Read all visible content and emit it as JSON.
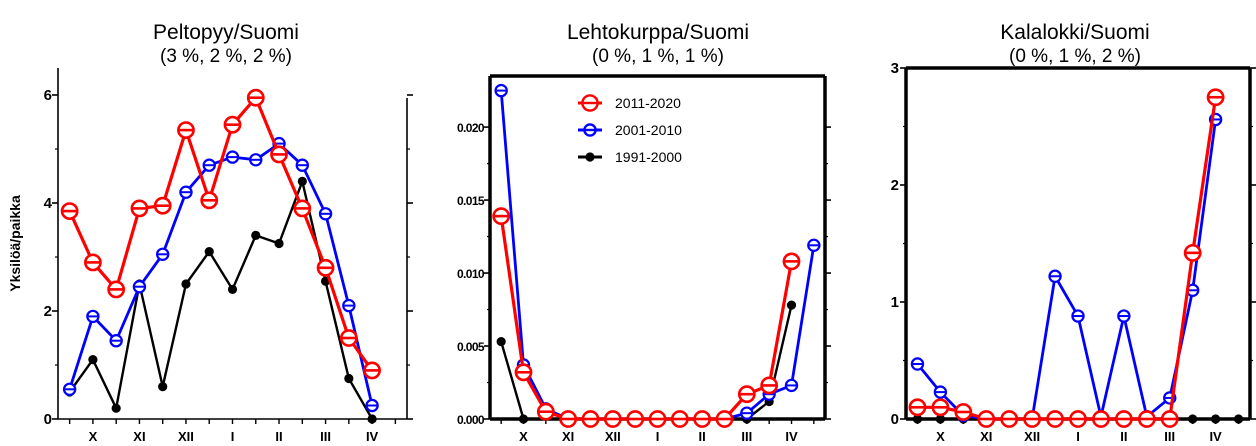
{
  "chart_data": [
    {
      "type": "line",
      "title": "Peltopyy/Suomi",
      "subtitle": "(3 %, 2 %, 2 %)",
      "ylabel": "Yksilöä/paikka",
      "ylim": [
        0,
        6.5
      ],
      "yticks": [
        0,
        2,
        4,
        6
      ],
      "ytick_labels": [
        "0",
        "2",
        "4",
        "6"
      ],
      "xlim": [
        0.5,
        15.5
      ],
      "xticks": [
        {
          "pos": 2,
          "label": "X"
        },
        {
          "pos": 4,
          "label": "XI"
        },
        {
          "pos": 6,
          "label": "XII"
        },
        {
          "pos": 8,
          "label": "I"
        },
        {
          "pos": 10,
          "label": "II"
        },
        {
          "pos": 12,
          "label": "III"
        },
        {
          "pos": 14,
          "label": "IV"
        }
      ],
      "x": [
        1,
        2,
        3,
        4,
        5,
        6,
        7,
        8,
        9,
        10,
        11,
        12,
        13,
        14,
        15
      ],
      "series": [
        {
          "name": "1991-2000",
          "color": "#000000",
          "marker": "dot",
          "values": [
            0.5,
            1.1,
            0.2,
            2.5,
            0.6,
            2.5,
            3.1,
            2.4,
            3.4,
            3.25,
            4.4,
            2.55,
            0.75,
            0.0,
            null
          ]
        },
        {
          "name": "2001-2010",
          "color": "#0000ff",
          "marker": "circle",
          "values": [
            0.55,
            1.9,
            1.45,
            2.45,
            3.05,
            4.2,
            4.7,
            4.85,
            4.8,
            5.1,
            4.7,
            3.8,
            2.1,
            0.25,
            null
          ]
        },
        {
          "name": "2011-2020",
          "color": "#ff0000",
          "marker": "circle",
          "values": [
            3.85,
            2.9,
            2.4,
            3.9,
            3.95,
            5.35,
            4.05,
            5.45,
            5.95,
            4.9,
            3.9,
            2.8,
            1.5,
            0.9,
            null
          ]
        }
      ]
    },
    {
      "type": "line",
      "title": "Lehtokurppa/Suomi",
      "subtitle": "(0 %, 1 %, 1 %)",
      "ylim": [
        0,
        0.0235
      ],
      "yticks": [
        0,
        0.005,
        0.01,
        0.015,
        0.02
      ],
      "ytick_labels": [
        "0.000",
        "0.005",
        "0.010",
        "0.015",
        "0.020"
      ],
      "xlim": [
        0.5,
        15.5
      ],
      "xticks": [
        {
          "pos": 2,
          "label": "X"
        },
        {
          "pos": 4,
          "label": "XI"
        },
        {
          "pos": 6,
          "label": "XII"
        },
        {
          "pos": 8,
          "label": "I"
        },
        {
          "pos": 10,
          "label": "II"
        },
        {
          "pos": 12,
          "label": "III"
        },
        {
          "pos": 14,
          "label": "IV"
        }
      ],
      "x": [
        1,
        2,
        3,
        4,
        5,
        6,
        7,
        8,
        9,
        10,
        11,
        12,
        13,
        14,
        15
      ],
      "legend": {
        "placement": "top-center",
        "entries": [
          "2011-2020",
          "2001-2010",
          "1991-2000"
        ]
      },
      "series": [
        {
          "name": "1991-2000",
          "color": "#000000",
          "marker": "dot",
          "values": [
            0.0053,
            0.0,
            null,
            null,
            null,
            null,
            null,
            null,
            null,
            null,
            null,
            0.0,
            0.0012,
            0.0078,
            null
          ]
        },
        {
          "name": "2001-2010",
          "color": "#0000ff",
          "marker": "circle",
          "values": [
            0.0225,
            0.0037,
            0.0007,
            0.0,
            0.0,
            0.0,
            0.0,
            0.0,
            0.0,
            0.0,
            0.0,
            0.0004,
            0.0017,
            0.0023,
            0.0119
          ]
        },
        {
          "name": "2011-2020",
          "color": "#ff0000",
          "marker": "circle",
          "values": [
            0.0139,
            0.0032,
            0.0005,
            0.0,
            0.0,
            0.0,
            0.0,
            0.0,
            0.0,
            0.0,
            0.0,
            0.0017,
            0.0023,
            0.0108,
            null
          ]
        }
      ]
    },
    {
      "type": "line",
      "title": "Kalalokki/Suomi",
      "subtitle": "(0 %, 1 %, 2 %)",
      "ylim": [
        0,
        3
      ],
      "yticks": [
        0,
        1,
        2,
        3
      ],
      "ytick_labels": [
        "0",
        "1",
        "2",
        "3"
      ],
      "xlim": [
        0.5,
        15.5
      ],
      "xticks": [
        {
          "pos": 2,
          "label": "X"
        },
        {
          "pos": 4,
          "label": "XI"
        },
        {
          "pos": 6,
          "label": "XII"
        },
        {
          "pos": 8,
          "label": "I"
        },
        {
          "pos": 10,
          "label": "II"
        },
        {
          "pos": 12,
          "label": "III"
        },
        {
          "pos": 14,
          "label": "IV"
        }
      ],
      "x": [
        1,
        2,
        3,
        4,
        5,
        6,
        7,
        8,
        9,
        10,
        11,
        12,
        13,
        14,
        15
      ],
      "series": [
        {
          "name": "1991-2000",
          "color": "#000000",
          "marker": "dot",
          "values": [
            0.0,
            0.0,
            0.0,
            0.0,
            0.0,
            0.0,
            0.0,
            0.0,
            0.0,
            0.0,
            0.0,
            0.0,
            0.0,
            0.0,
            0.0
          ]
        },
        {
          "name": "2001-2010",
          "color": "#0000ff",
          "marker": "circle",
          "values": [
            0.47,
            0.23,
            0.03,
            0.0,
            0.0,
            0.0,
            1.22,
            0.88,
            0.02,
            0.88,
            0.02,
            0.18,
            1.1,
            2.56,
            null
          ]
        },
        {
          "name": "2011-2020",
          "color": "#ff0000",
          "marker": "circle",
          "values": [
            0.1,
            0.1,
            0.06,
            0.0,
            0.0,
            0.0,
            0.0,
            0.0,
            0.0,
            0.0,
            0.0,
            0.0,
            1.42,
            2.75,
            null
          ]
        }
      ]
    }
  ]
}
